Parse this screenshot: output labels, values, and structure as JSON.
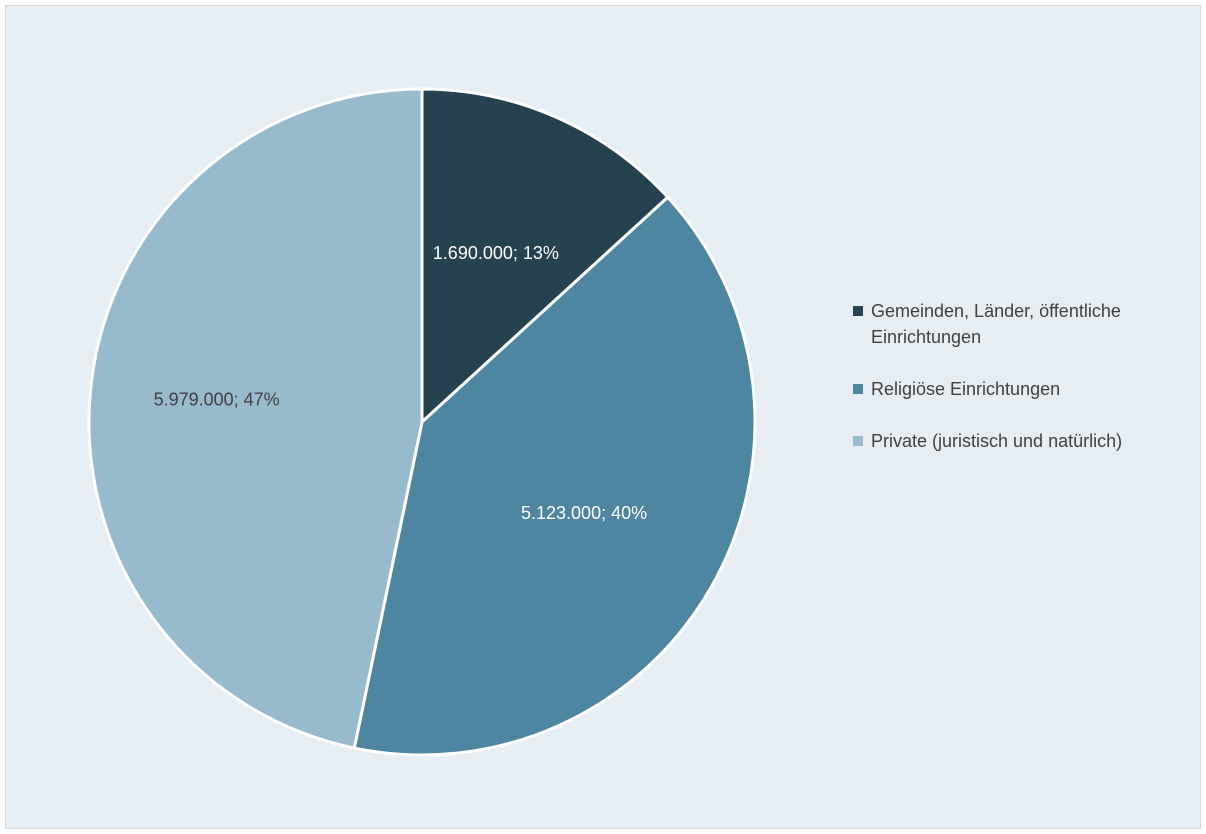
{
  "chart_data": {
    "type": "pie",
    "categories": [
      "Gemeinden, Länder, öffentliche Einrichtungen",
      "Religiöse Einrichtungen",
      "Private (juristisch und natürlich)"
    ],
    "values": [
      1690000,
      5123000,
      5979000
    ],
    "percentages": [
      13,
      40,
      47
    ],
    "data_labels": [
      "1.690.000; 13%",
      "5.123.000; 40%",
      "5.979.000; 47%"
    ],
    "colors": [
      "#254250",
      "#4e86a1",
      "#97bacc"
    ],
    "label_colors": [
      "#ffffff",
      "#ffffff",
      "#404040"
    ],
    "legend_position": "right",
    "start_angle": "12 o'clock, clockwise"
  }
}
